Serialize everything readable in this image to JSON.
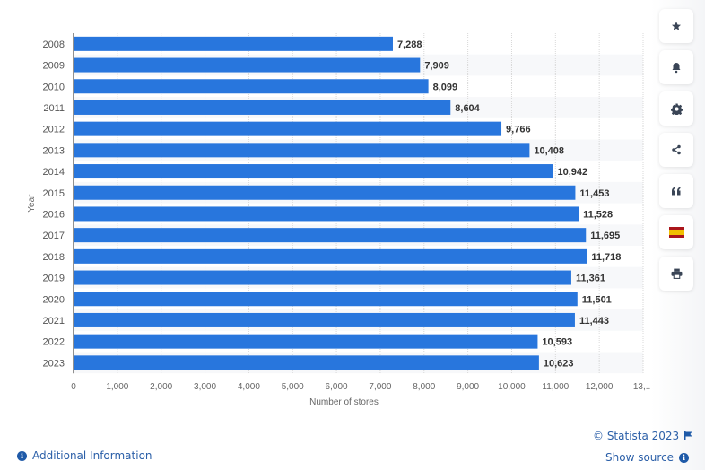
{
  "chart_data": {
    "type": "bar",
    "orientation": "horizontal",
    "categories": [
      "2008",
      "2009",
      "2010",
      "2011",
      "2012",
      "2013",
      "2014",
      "2015",
      "2016",
      "2017",
      "2018",
      "2019",
      "2020",
      "2021",
      "2022",
      "2023"
    ],
    "values": [
      7288,
      7909,
      8099,
      8604,
      9766,
      10408,
      10942,
      11453,
      11528,
      11695,
      11718,
      11361,
      11501,
      11443,
      10593,
      10623
    ],
    "value_labels": [
      "7,288",
      "7,909",
      "8,099",
      "8,604",
      "9,766",
      "10,408",
      "10,942",
      "11,453",
      "11,528",
      "11,695",
      "11,718",
      "11,361",
      "11,501",
      "11,443",
      "10,593",
      "10,623"
    ],
    "xlabel": "Number of stores",
    "ylabel": "Year",
    "xlim": [
      0,
      13000
    ],
    "x_ticks": [
      0,
      1000,
      2000,
      3000,
      4000,
      5000,
      6000,
      7000,
      8000,
      9000,
      10000,
      11000,
      12000,
      13000
    ],
    "x_tick_labels": [
      "0",
      "1,000",
      "2,000",
      "3,000",
      "4,000",
      "5,000",
      "6,000",
      "7,000",
      "8,000",
      "9,000",
      "10,000",
      "11,000",
      "12,000",
      "13,..."
    ],
    "grid": true,
    "bar_color": "#2876dd",
    "legend": "none"
  },
  "sidebar": {
    "buttons": [
      {
        "name": "favorite-button",
        "icon": "star-icon"
      },
      {
        "name": "notification-button",
        "icon": "bell-icon"
      },
      {
        "name": "settings-button",
        "icon": "gear-icon"
      },
      {
        "name": "share-button",
        "icon": "share-icon"
      },
      {
        "name": "cite-button",
        "icon": "quote-icon"
      },
      {
        "name": "language-button",
        "icon": "spain-flag-icon"
      },
      {
        "name": "print-button",
        "icon": "printer-icon"
      }
    ]
  },
  "footer": {
    "additional_info": "Additional Information",
    "copyright": "© Statista 2023",
    "show_source": "Show source"
  }
}
